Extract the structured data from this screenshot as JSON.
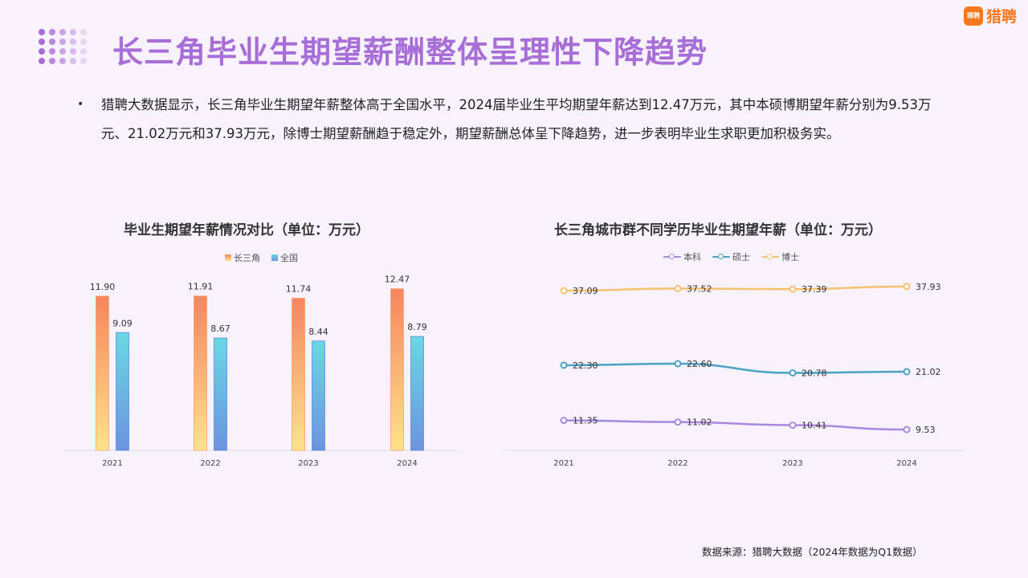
{
  "header": {
    "title": "长三角毕业生期望薪酬整体呈理性下降趋势",
    "logo_mark": "猎聘",
    "logo_text": "猎聘"
  },
  "summary": {
    "bullet": "•",
    "text": "猎聘大数据显示，长三角毕业生期望年薪整体高于全国水平，2024届毕业生平均期望年薪达到12.47万元，其中本硕博期望年薪分别为9.53万元、21.02万元和37.93万元，除博士期望薪酬趋于稳定外，期望薪酬总体呈下降趋势，进一步表明毕业生求职更加积极务实。"
  },
  "source": "数据来源：猎聘大数据（2024年数据为Q1数据）",
  "colors": {
    "title": "#a86ed8",
    "brand": "#f6781e",
    "bar_yrd_top": "#f6855f",
    "bar_yrd_bottom": "#fde38a",
    "bar_nat_top": "#6ad8e3",
    "bar_nat_bottom": "#6c93e0",
    "line_benke": "#a78ae0",
    "line_shuoshi": "#4aa3c4",
    "line_boshi": "#f7c16f"
  },
  "chart_data": [
    {
      "type": "bar",
      "title": "毕业生期望年薪情况对比（单位：万元）",
      "categories": [
        "2021",
        "2022",
        "2023",
        "2024"
      ],
      "series": [
        {
          "name": "长三角",
          "values": [
            11.9,
            11.91,
            11.74,
            12.47
          ],
          "labels": [
            "11.90",
            "11.91",
            "11.74",
            "12.47"
          ]
        },
        {
          "name": "全国",
          "values": [
            9.09,
            8.67,
            8.44,
            8.79
          ],
          "labels": [
            "9.09",
            "8.67",
            "8.44",
            "8.79"
          ]
        }
      ],
      "ylim": [
        0,
        14
      ],
      "legend": "top"
    },
    {
      "type": "line",
      "title": "长三角城市群不同学历毕业生期望年薪（单位：万元）",
      "categories": [
        "2021",
        "2022",
        "2023",
        "2024"
      ],
      "series": [
        {
          "name": "本科",
          "values": [
            11.35,
            11.02,
            10.41,
            9.53
          ],
          "labels": [
            "11.35",
            "11.02",
            "10.41",
            "9.53"
          ]
        },
        {
          "name": "硕士",
          "values": [
            22.3,
            22.6,
            20.78,
            21.02
          ],
          "labels": [
            "22.30",
            "22.60",
            "20.78",
            "21.02"
          ]
        },
        {
          "name": "博士",
          "values": [
            37.09,
            37.52,
            37.39,
            37.93
          ],
          "labels": [
            "37.09",
            "37.52",
            "37.39",
            "37.93"
          ]
        }
      ],
      "ylim": [
        0,
        42
      ],
      "legend": "top"
    }
  ]
}
